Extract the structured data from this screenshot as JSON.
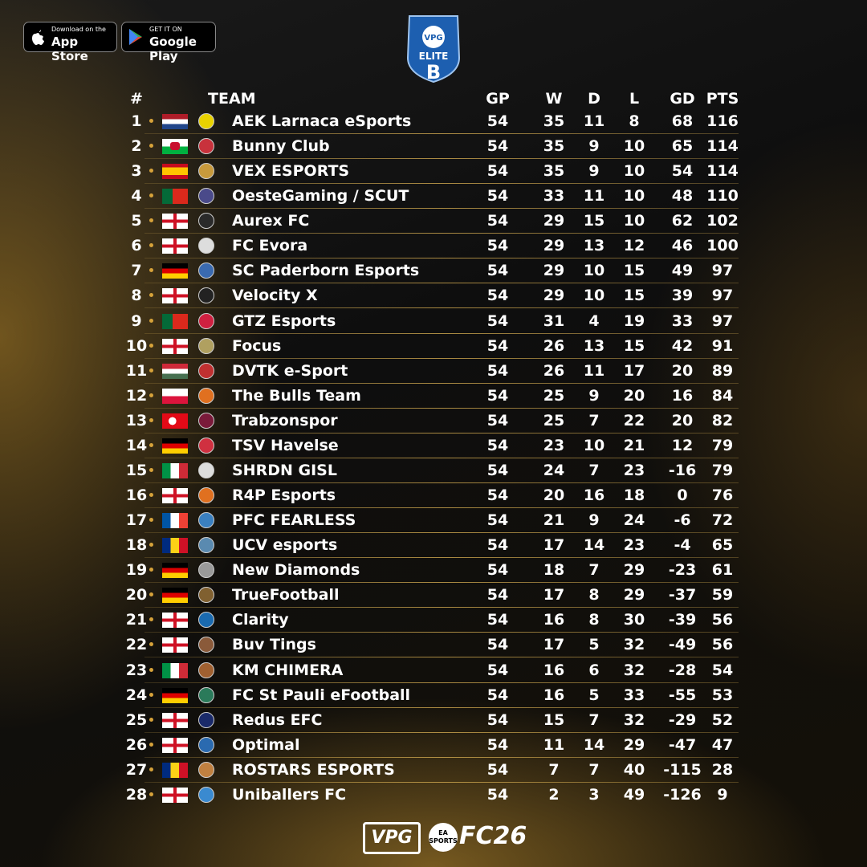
{
  "badges": {
    "app_store": {
      "small": "Download on the",
      "big": "App Store"
    },
    "google_play": {
      "small": "GET IT ON",
      "big": "Google Play"
    }
  },
  "logo": {
    "brand": "VPG",
    "title": "ELITE",
    "division": "B"
  },
  "table": {
    "header": [
      "#",
      "TEAM",
      "GP",
      "W",
      "D",
      "L",
      "GD",
      "PTS"
    ],
    "rows": [
      [
        1,
        "AEK Larnaca eSports",
        54,
        35,
        11,
        8,
        68,
        116
      ],
      [
        2,
        "Bunny Club",
        54,
        35,
        9,
        10,
        65,
        114
      ],
      [
        3,
        "VEX ESPORTS",
        54,
        35,
        9,
        10,
        54,
        114
      ],
      [
        4,
        "OesteGaming / SCUT",
        54,
        33,
        11,
        10,
        48,
        110
      ],
      [
        5,
        "Aurex FC",
        54,
        29,
        15,
        10,
        62,
        102
      ],
      [
        6,
        "FC Evora",
        54,
        29,
        13,
        12,
        46,
        100
      ],
      [
        7,
        "SC Paderborn Esports",
        54,
        29,
        10,
        15,
        49,
        97
      ],
      [
        8,
        "Velocity X",
        54,
        29,
        10,
        15,
        39,
        97
      ],
      [
        9,
        "GTZ Esports",
        54,
        31,
        4,
        19,
        33,
        97
      ],
      [
        10,
        "Focus",
        54,
        26,
        13,
        15,
        42,
        91
      ],
      [
        11,
        "DVTK e-Sport",
        54,
        26,
        11,
        17,
        20,
        89
      ],
      [
        12,
        "The Bulls Team",
        54,
        25,
        9,
        20,
        16,
        84
      ],
      [
        13,
        "Trabzonspor",
        54,
        25,
        7,
        22,
        20,
        82
      ],
      [
        14,
        "TSV Havelse",
        54,
        23,
        10,
        21,
        12,
        79
      ],
      [
        15,
        "SHRDN GISL",
        54,
        24,
        7,
        23,
        -16,
        79
      ],
      [
        16,
        "R4P Esports",
        54,
        20,
        16,
        18,
        0,
        76
      ],
      [
        17,
        "PFC FEARLESS",
        54,
        21,
        9,
        24,
        -6,
        72
      ],
      [
        18,
        "UCV esports",
        54,
        17,
        14,
        23,
        -4,
        65
      ],
      [
        19,
        "New Diamonds",
        54,
        18,
        7,
        29,
        -23,
        61
      ],
      [
        20,
        "TrueFootball",
        54,
        17,
        8,
        29,
        -37,
        59
      ],
      [
        21,
        "Clarity",
        54,
        16,
        8,
        30,
        -39,
        56
      ],
      [
        22,
        "Buv Tings",
        54,
        17,
        5,
        32,
        -49,
        56
      ],
      [
        23,
        "KM CHIMERA",
        54,
        16,
        6,
        32,
        -28,
        54
      ],
      [
        24,
        "FC St Pauli eFootball",
        54,
        16,
        5,
        33,
        -55,
        53
      ],
      [
        25,
        "Redus EFC",
        54,
        15,
        7,
        32,
        -29,
        52
      ],
      [
        26,
        "Optimal",
        54,
        11,
        14,
        29,
        -47,
        47
      ],
      [
        27,
        "ROSTARS ESPORTS",
        54,
        7,
        7,
        40,
        -115,
        28
      ],
      [
        28,
        "Uniballers FC",
        54,
        2,
        3,
        49,
        -126,
        9
      ]
    ]
  },
  "footer": {
    "brand": "VPG",
    "partner": "EA SPORTS",
    "game": "FC26"
  }
}
